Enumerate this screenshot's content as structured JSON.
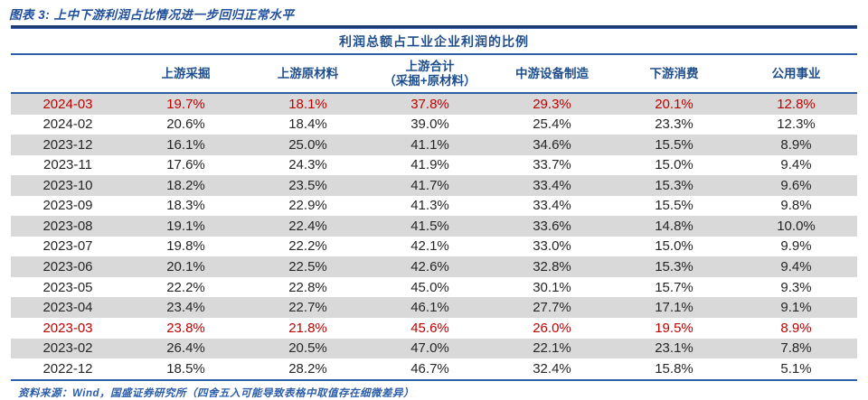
{
  "figure": {
    "title": "图表 3: 上中下游利润占比情况进一步回归正常水平",
    "source_note": "资料来源：Wind，国盛证券研究所（四舍五入可能导致表格中取值存在细微差异）"
  },
  "colors": {
    "accent_navy_text": "#1f4e8c",
    "rule_blue": "#2e5fa8",
    "highlight_red": "#c00000",
    "shaded_row_gray": "#d9d9d9"
  },
  "chart_data": {
    "type": "table",
    "title": "利润总额占工业企业利润的比例",
    "date_column_header": "",
    "columns": [
      {
        "line1": "上游采掘"
      },
      {
        "line1": "上游原材料"
      },
      {
        "line1": "上游合计",
        "line2": "（采掘+原材料）"
      },
      {
        "line1": "中游设备制造"
      },
      {
        "line1": "下游消费"
      },
      {
        "line1": "公用事业"
      }
    ],
    "rows": [
      {
        "date": "2024-03",
        "values": [
          "19.7%",
          "18.1%",
          "37.8%",
          "29.3%",
          "20.1%",
          "12.8%"
        ],
        "highlight": true
      },
      {
        "date": "2024-02",
        "values": [
          "20.6%",
          "18.4%",
          "39.0%",
          "25.4%",
          "23.3%",
          "12.3%"
        ],
        "highlight": false
      },
      {
        "date": "2023-12",
        "values": [
          "16.1%",
          "25.0%",
          "41.1%",
          "34.6%",
          "15.5%",
          "8.9%"
        ],
        "highlight": false
      },
      {
        "date": "2023-11",
        "values": [
          "17.6%",
          "24.3%",
          "41.9%",
          "33.7%",
          "15.0%",
          "9.4%"
        ],
        "highlight": false
      },
      {
        "date": "2023-10",
        "values": [
          "18.2%",
          "23.5%",
          "41.7%",
          "33.4%",
          "15.3%",
          "9.6%"
        ],
        "highlight": false
      },
      {
        "date": "2023-09",
        "values": [
          "18.3%",
          "22.9%",
          "41.3%",
          "33.4%",
          "15.5%",
          "9.8%"
        ],
        "highlight": false
      },
      {
        "date": "2023-08",
        "values": [
          "19.1%",
          "22.4%",
          "41.5%",
          "33.6%",
          "14.8%",
          "10.0%"
        ],
        "highlight": false
      },
      {
        "date": "2023-07",
        "values": [
          "19.8%",
          "22.2%",
          "42.1%",
          "33.0%",
          "15.0%",
          "9.9%"
        ],
        "highlight": false
      },
      {
        "date": "2023-06",
        "values": [
          "20.1%",
          "22.5%",
          "42.6%",
          "32.8%",
          "15.3%",
          "9.4%"
        ],
        "highlight": false
      },
      {
        "date": "2023-05",
        "values": [
          "22.2%",
          "22.8%",
          "45.0%",
          "30.1%",
          "15.7%",
          "9.3%"
        ],
        "highlight": false
      },
      {
        "date": "2023-04",
        "values": [
          "23.4%",
          "22.7%",
          "46.1%",
          "27.7%",
          "17.1%",
          "9.1%"
        ],
        "highlight": false
      },
      {
        "date": "2023-03",
        "values": [
          "23.8%",
          "21.8%",
          "45.6%",
          "26.0%",
          "19.5%",
          "8.9%"
        ],
        "highlight": true
      },
      {
        "date": "2023-02",
        "values": [
          "26.4%",
          "20.5%",
          "47.0%",
          "22.1%",
          "23.1%",
          "7.8%"
        ],
        "highlight": false
      },
      {
        "date": "2022-12",
        "values": [
          "18.5%",
          "28.2%",
          "46.7%",
          "32.4%",
          "15.8%",
          "5.1%"
        ],
        "highlight": false
      }
    ]
  }
}
